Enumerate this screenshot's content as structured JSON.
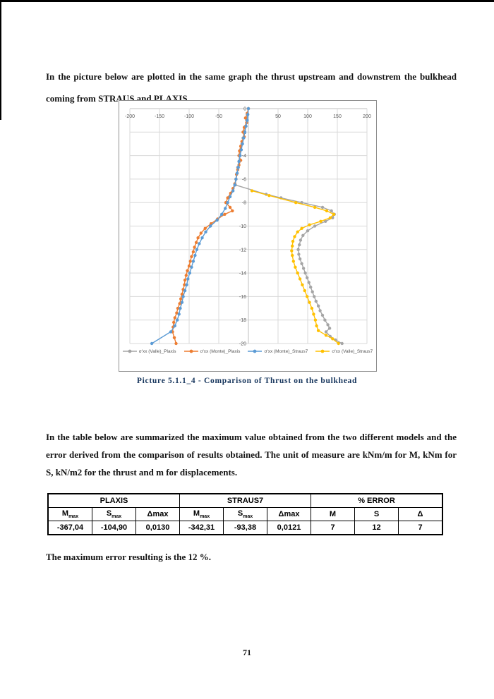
{
  "page": {
    "number": "71"
  },
  "paragraphs": {
    "p1": "In the picture below are plotted in the same graph the thrust upstream and downstrem the bulkhead coming from STRAUS and PLAXIS.",
    "p2": "In the table below are summarized the maximum value obtained from the two different models and the error derived from the comparison of results obtained. The unit of measure are kNm/m for M, kNm for S, kN/m2 for the thrust and m for displacements.",
    "p3": "The maximum error resulting is the 12 %."
  },
  "caption": "Picture 5.1.1_4 - Comparison of Thrust on the bulkhead",
  "chart_data": {
    "type": "line",
    "title": "",
    "xlabel": "",
    "ylabel": "",
    "xlim": [
      -200,
      200
    ],
    "xticks": [
      -200,
      -150,
      -100,
      -50,
      0,
      50,
      100,
      150,
      200
    ],
    "ylim": [
      -20,
      0
    ],
    "yticks": [
      0,
      -2,
      -4,
      -6,
      -8,
      -10,
      -12,
      -14,
      -16,
      -18,
      -20
    ],
    "grid": true,
    "legend_position": "bottom",
    "series": [
      {
        "name": "σ'xx (Valle)_Plaxis",
        "color": "#A5A5A5",
        "points": [
          [
            0,
            0
          ],
          [
            -0.5,
            -2
          ],
          [
            -1,
            -3
          ],
          [
            -1.5,
            -5
          ],
          [
            -2,
            -7
          ],
          [
            -2.5,
            -9
          ],
          [
            -3,
            -11
          ],
          [
            -3.5,
            -13
          ],
          [
            -4,
            -15
          ],
          [
            -4.5,
            -16
          ],
          [
            -5,
            -18
          ],
          [
            -5.5,
            -19
          ],
          [
            -6,
            -21
          ],
          [
            -6.5,
            -22
          ],
          [
            -7.3,
            30
          ],
          [
            -7.6,
            55
          ],
          [
            -8,
            90
          ],
          [
            -8.4,
            125
          ],
          [
            -8.7,
            140
          ],
          [
            -9,
            145
          ],
          [
            -9.3,
            142
          ],
          [
            -9.6,
            130
          ],
          [
            -10,
            112
          ],
          [
            -10.4,
            100
          ],
          [
            -10.8,
            92
          ],
          [
            -11.2,
            88
          ],
          [
            -11.6,
            86
          ],
          [
            -12,
            84
          ],
          [
            -12.4,
            85
          ],
          [
            -12.8,
            87
          ],
          [
            -13.2,
            90
          ],
          [
            -13.6,
            93
          ],
          [
            -14,
            96
          ],
          [
            -14.4,
            99
          ],
          [
            -14.8,
            102
          ],
          [
            -15.2,
            105
          ],
          [
            -15.6,
            108
          ],
          [
            -16,
            111
          ],
          [
            -16.4,
            114
          ],
          [
            -16.8,
            118
          ],
          [
            -17.2,
            121
          ],
          [
            -17.6,
            125
          ],
          [
            -18,
            129
          ],
          [
            -18.4,
            134
          ],
          [
            -18.7,
            137
          ],
          [
            -19,
            131
          ],
          [
            -19.4,
            138
          ],
          [
            -19.7,
            147
          ],
          [
            -20,
            158
          ]
        ]
      },
      {
        "name": "σ'xx (Monte)_Plaxis",
        "color": "#ED7D31",
        "points": [
          [
            0,
            0
          ],
          [
            -0.4,
            -2
          ],
          [
            -0.8,
            -5
          ],
          [
            -1.2,
            -3
          ],
          [
            -1.6,
            -7
          ],
          [
            -2,
            -9
          ],
          [
            -2.4,
            -7
          ],
          [
            -2.8,
            -11
          ],
          [
            -3.2,
            -13
          ],
          [
            -3.6,
            -15
          ],
          [
            -4,
            -16
          ],
          [
            -4.4,
            -13
          ],
          [
            -4.8,
            -16
          ],
          [
            -5.2,
            -18
          ],
          [
            -5.6,
            -20
          ],
          [
            -6,
            -21
          ],
          [
            -6.4,
            -23
          ],
          [
            -6.8,
            -26
          ],
          [
            -7.2,
            -30
          ],
          [
            -7.6,
            -35
          ],
          [
            -8,
            -38
          ],
          [
            -8.4,
            -31
          ],
          [
            -8.7,
            -27
          ],
          [
            -9,
            -40
          ],
          [
            -9.4,
            -52
          ],
          [
            -9.8,
            -63
          ],
          [
            -10.2,
            -73
          ],
          [
            -10.6,
            -80
          ],
          [
            -11,
            -85
          ],
          [
            -11.4,
            -88
          ],
          [
            -11.8,
            -91
          ],
          [
            -12.2,
            -93
          ],
          [
            -12.6,
            -96
          ],
          [
            -13,
            -98
          ],
          [
            -13.4,
            -100
          ],
          [
            -13.8,
            -103
          ],
          [
            -14.2,
            -105
          ],
          [
            -14.6,
            -107
          ],
          [
            -15,
            -108
          ],
          [
            -15.4,
            -110
          ],
          [
            -15.8,
            -112
          ],
          [
            -16.2,
            -114
          ],
          [
            -16.6,
            -116
          ],
          [
            -17,
            -119
          ],
          [
            -17.4,
            -121
          ],
          [
            -17.8,
            -124
          ],
          [
            -18.2,
            -126
          ],
          [
            -18.6,
            -127
          ],
          [
            -19,
            -128
          ],
          [
            -19.5,
            -125
          ],
          [
            -20,
            -122
          ]
        ]
      },
      {
        "name": "σ'xx (Monte)_Straus7",
        "color": "#5B9BD5",
        "points": [
          [
            0,
            0
          ],
          [
            -0.5,
            -1
          ],
          [
            -1,
            -2
          ],
          [
            -1.5,
            -4
          ],
          [
            -2,
            -6
          ],
          [
            -2.5,
            -8
          ],
          [
            -3,
            -10
          ],
          [
            -3.5,
            -12
          ],
          [
            -4,
            -14
          ],
          [
            -4.5,
            -16
          ],
          [
            -5,
            -17
          ],
          [
            -5.5,
            -19
          ],
          [
            -6,
            -21
          ],
          [
            -6.5,
            -23
          ],
          [
            -7,
            -26
          ],
          [
            -7.5,
            -31
          ],
          [
            -8,
            -35
          ],
          [
            -8.5,
            -39
          ],
          [
            -9,
            -45
          ],
          [
            -9.5,
            -53
          ],
          [
            -10,
            -64
          ],
          [
            -10.5,
            -72
          ],
          [
            -11,
            -78
          ],
          [
            -11.5,
            -83
          ],
          [
            -12,
            -87
          ],
          [
            -12.5,
            -90
          ],
          [
            -13,
            -93
          ],
          [
            -13.5,
            -96
          ],
          [
            -14,
            -99
          ],
          [
            -14.5,
            -102
          ],
          [
            -15,
            -104
          ],
          [
            -15.5,
            -107
          ],
          [
            -16,
            -110
          ],
          [
            -16.5,
            -112
          ],
          [
            -17,
            -115
          ],
          [
            -17.5,
            -117
          ],
          [
            -18,
            -120
          ],
          [
            -18.5,
            -124
          ],
          [
            -19,
            -131
          ],
          [
            -20,
            -163
          ]
        ]
      },
      {
        "name": "σ'xx (Valle)_Straus7",
        "color": "#FFC000",
        "points": [
          [
            -7,
            6
          ],
          [
            -7.4,
            35
          ],
          [
            -8,
            80
          ],
          [
            -8.4,
            112
          ],
          [
            -8.7,
            132
          ],
          [
            -9,
            144
          ],
          [
            -9.3,
            138
          ],
          [
            -9.6,
            122
          ],
          [
            -9.9,
            103
          ],
          [
            -10.2,
            90
          ],
          [
            -10.5,
            83
          ],
          [
            -10.9,
            78
          ],
          [
            -11.3,
            75
          ],
          [
            -11.7,
            74
          ],
          [
            -12.1,
            73
          ],
          [
            -12.5,
            74
          ],
          [
            -13,
            76
          ],
          [
            -13.5,
            79
          ],
          [
            -14,
            83
          ],
          [
            -14.5,
            87
          ],
          [
            -15,
            91
          ],
          [
            -15.5,
            95
          ],
          [
            -16,
            99
          ],
          [
            -16.5,
            103
          ],
          [
            -17,
            107
          ],
          [
            -17.5,
            110
          ],
          [
            -18,
            113
          ],
          [
            -18.5,
            115
          ],
          [
            -18.9,
            118
          ],
          [
            -19.3,
            131
          ],
          [
            -19.6,
            142
          ],
          [
            -20,
            152
          ]
        ]
      }
    ]
  },
  "table": {
    "groups": [
      {
        "label": "PLAXIS"
      },
      {
        "label": "STRAUS7"
      },
      {
        "label": "% ERROR"
      }
    ],
    "subheaders": [
      {
        "main": "M",
        "sub": "max"
      },
      {
        "main": "S",
        "sub": "max"
      },
      {
        "main": "Δmax",
        "sub": ""
      },
      {
        "main": "M",
        "sub": "max"
      },
      {
        "main": "S",
        "sub": "max"
      },
      {
        "main": "Δmax",
        "sub": ""
      },
      {
        "main": "M",
        "sub": ""
      },
      {
        "main": "S",
        "sub": ""
      },
      {
        "main": "Δ",
        "sub": ""
      }
    ],
    "values": [
      "-367,04",
      "-104,90",
      "0,0130",
      "-342,31",
      "-93,38",
      "0,0121",
      "7",
      "12",
      "7"
    ]
  }
}
